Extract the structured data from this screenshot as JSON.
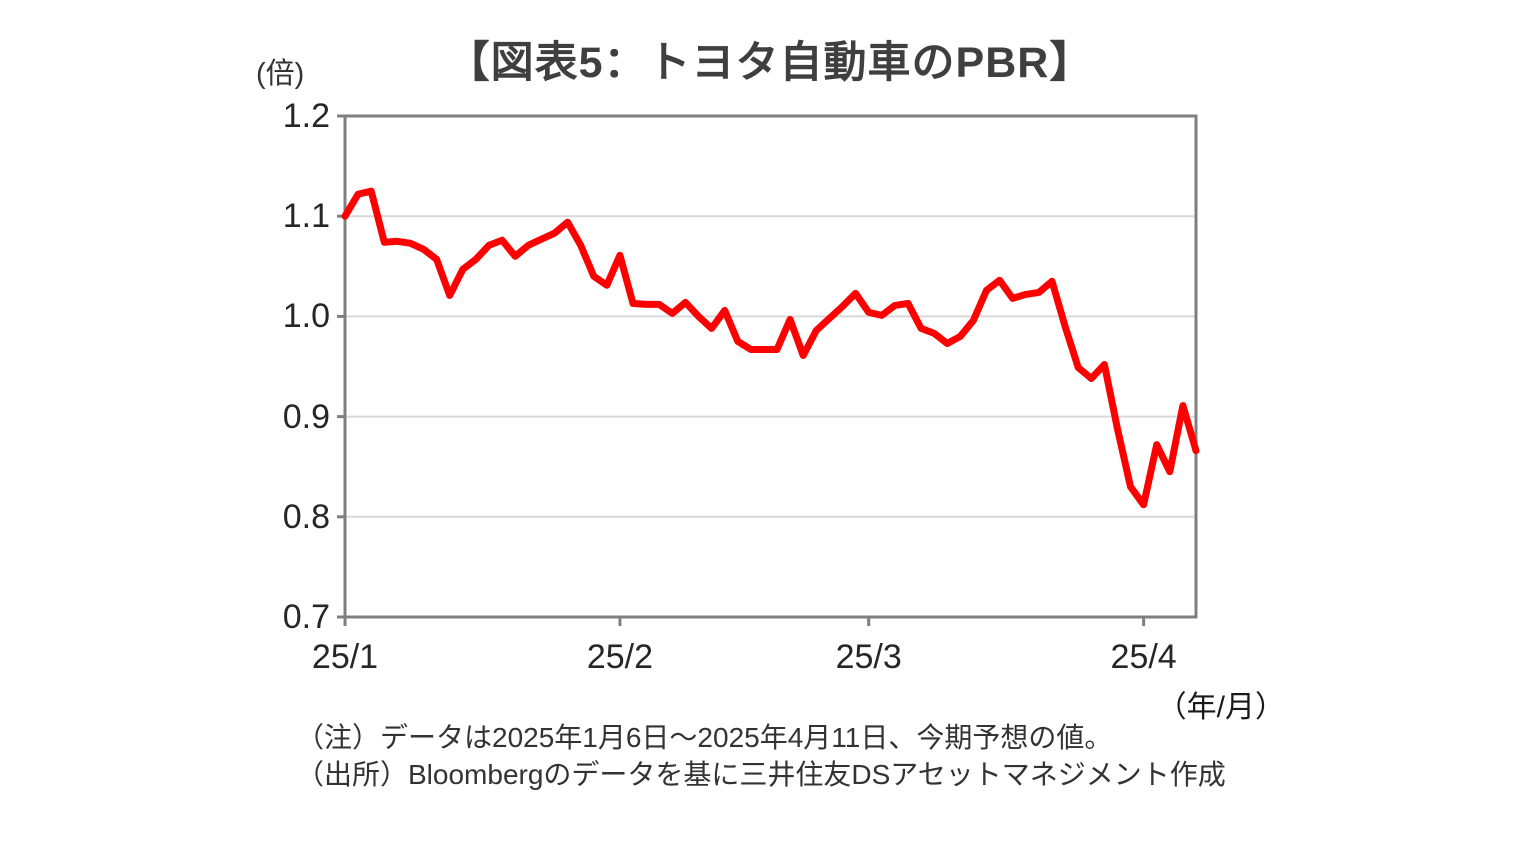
{
  "chart": {
    "title": "【図表5：トヨタ自動車のPBR】",
    "y_axis_unit": "(倍)",
    "x_axis_unit": "（年/月）",
    "note_line": "（注）データは2025年1月6日～2025年4月11日、今期予想の値。",
    "source_line": "（出所）Bloombergのデータを基に三井住友DSアセットマネジメント作成"
  },
  "chart_data": {
    "type": "line",
    "title": "【図表5：トヨタ自動車のPBR】",
    "ylabel": "(倍)",
    "xlabel": "（年/月）",
    "ylim": [
      0.7,
      1.2
    ],
    "y_ticks": [
      "1.2",
      "1.1",
      "1.0",
      "0.9",
      "0.8",
      "0.7"
    ],
    "x_tick_labels": [
      "25/1",
      "25/2",
      "25/3",
      "25/4"
    ],
    "x_tick_indices": [
      0,
      21,
      40,
      61
    ],
    "grid": "horizontal",
    "legend_position": "none",
    "line_color": "#ff0000",
    "axis_color": "#7f7f7f",
    "gridline_color": "#d9d9d9",
    "series": [
      {
        "name": "トヨタ自動車のPBR（今期予想）",
        "x": [
          "1/6",
          "1/7",
          "1/8",
          "1/9",
          "1/10",
          "1/14",
          "1/15",
          "1/16",
          "1/17",
          "1/20",
          "1/21",
          "1/22",
          "1/23",
          "1/24",
          "1/27",
          "1/28",
          "1/29",
          "1/30",
          "1/31",
          "2/3",
          "2/4",
          "2/5",
          "2/6",
          "2/7",
          "2/10",
          "2/12",
          "2/13",
          "2/14",
          "2/17",
          "2/18",
          "2/19",
          "2/20",
          "2/21",
          "2/25",
          "2/26",
          "2/27",
          "2/28",
          "3/3",
          "3/4",
          "3/5",
          "3/6",
          "3/7",
          "3/10",
          "3/11",
          "3/12",
          "3/13",
          "3/14",
          "3/17",
          "3/18",
          "3/19",
          "3/21",
          "3/24",
          "3/25",
          "3/26",
          "3/27",
          "3/28",
          "3/31",
          "4/1",
          "4/2",
          "4/3",
          "4/4",
          "4/7",
          "4/8",
          "4/9",
          "4/10",
          "4/11"
        ],
        "values": [
          1.1,
          1.122,
          1.125,
          1.074,
          1.075,
          1.073,
          1.067,
          1.057,
          1.021,
          1.047,
          1.057,
          1.071,
          1.076,
          1.06,
          1.071,
          1.077,
          1.083,
          1.094,
          1.071,
          1.04,
          1.031,
          1.061,
          1.013,
          1.012,
          1.012,
          1.003,
          1.014,
          1.0,
          0.988,
          1.006,
          0.975,
          0.967,
          0.967,
          0.967,
          0.997,
          0.961,
          0.986,
          0.998,
          1.01,
          1.023,
          1.004,
          1.001,
          1.011,
          1.013,
          0.988,
          0.983,
          0.973,
          0.98,
          0.996,
          1.026,
          1.036,
          1.018,
          1.022,
          1.024,
          1.035,
          0.99,
          0.949,
          0.938,
          0.952,
          0.888,
          0.83,
          0.812,
          0.872,
          0.845,
          0.911,
          0.866
        ]
      }
    ]
  }
}
